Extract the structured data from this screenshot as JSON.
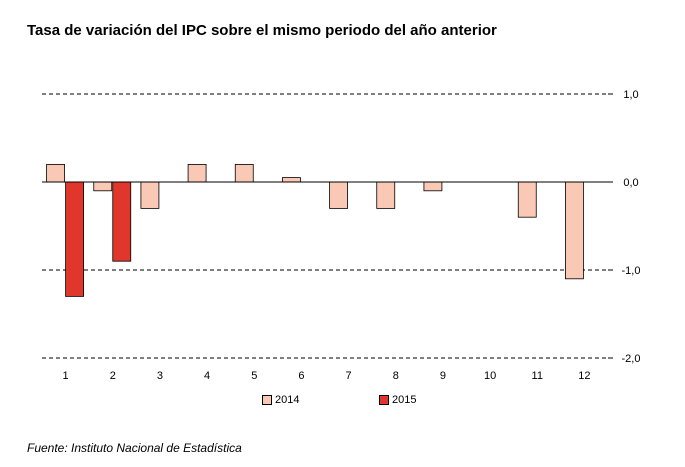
{
  "title": "Tasa de variación del IPC sobre el mismo periodo del año anterior",
  "source": "Fuente: Instituto Nacional de Estadística",
  "chart_data": {
    "type": "bar",
    "categories": [
      "1",
      "2",
      "3",
      "4",
      "5",
      "6",
      "7",
      "8",
      "9",
      "10",
      "11",
      "12"
    ],
    "series": [
      {
        "name": "2014",
        "color": "#f9c9b6",
        "values": [
          0.2,
          -0.1,
          -0.3,
          0.2,
          0.2,
          0.05,
          -0.3,
          -0.3,
          -0.1,
          null,
          -0.4,
          -1.1
        ]
      },
      {
        "name": "2015",
        "color": "#e0362b",
        "values": [
          -1.3,
          -0.9,
          null,
          null,
          null,
          null,
          null,
          null,
          null,
          null,
          null,
          null
        ]
      }
    ],
    "ylim": [
      -2.0,
      1.0
    ],
    "yticks": [
      "1,0",
      "0,0",
      "-1,0",
      "-2,0"
    ],
    "ytick_values": [
      1.0,
      0.0,
      -1.0,
      -2.0
    ],
    "grid": true,
    "legend_position": "bottom"
  }
}
